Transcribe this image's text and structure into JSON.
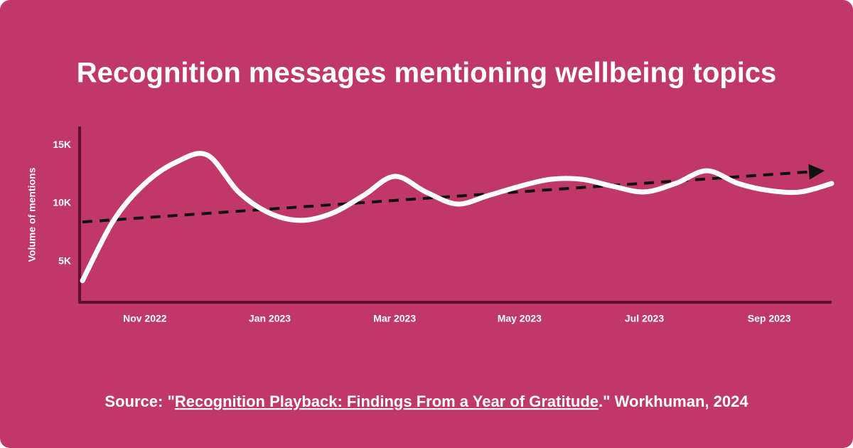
{
  "chart_data": {
    "type": "line",
    "title": "Recognition messages mentioning wellbeing topics",
    "y_label": "Volume of mentions",
    "categories": [
      null,
      null,
      "Nov 2022",
      null,
      null,
      null,
      "Jan 2023",
      null,
      null,
      null,
      "Mar 2023",
      null,
      null,
      null,
      "May 2023",
      null,
      null,
      null,
      "Jul 2023",
      null,
      null,
      null,
      "Sep 2023",
      null,
      null
    ],
    "values": [
      3350,
      8540,
      11700,
      13540,
      14150,
      10980,
      9150,
      8540,
      9150,
      10670,
      12320,
      10980,
      9940,
      10670,
      11460,
      12070,
      12070,
      11460,
      10980,
      11710,
      12800,
      11710,
      11100,
      10980,
      11710
    ],
    "color": "#ffffff",
    "trend": {
      "start": 8400,
      "end": 12800,
      "color": "#111111"
    },
    "ylim": [
      1500,
      16600
    ],
    "yticks": [
      {
        "value": 5000,
        "label": "5K"
      },
      {
        "value": 10000,
        "label": "10K"
      },
      {
        "value": 15000,
        "label": "15K"
      }
    ],
    "grid": false,
    "source_prefix": "Source: \"",
    "source_link": "Recognition Playback: Findings From a Year of Gratitude",
    "source_suffix": ".\" Workhuman, 2024"
  }
}
